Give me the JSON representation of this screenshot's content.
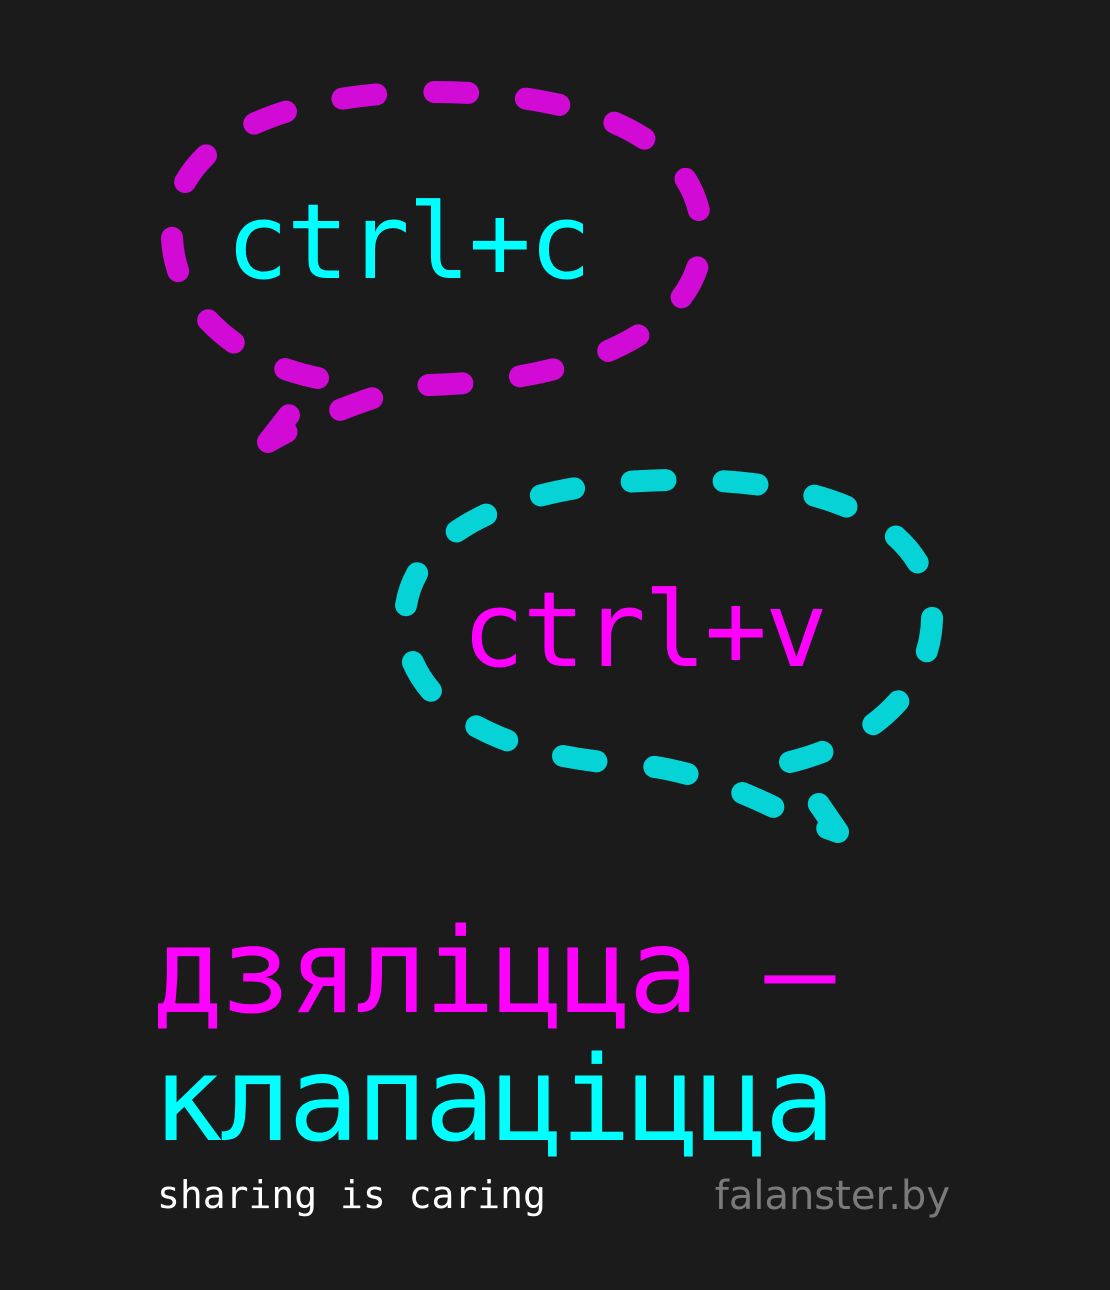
{
  "bubbles": {
    "copy": {
      "label": "ctrl+c",
      "outline_color": "#d10ad6",
      "text_color": "#00ffff"
    },
    "paste": {
      "label": "ctrl+v",
      "outline_color": "#06d3d6",
      "text_color": "#ff00ff"
    }
  },
  "headline": {
    "line1": "дзяліцца –",
    "line2": "клапаціцца",
    "line1_color": "#ff00ff",
    "line2_color": "#00ffff"
  },
  "footer": {
    "tagline": "sharing is caring",
    "site": "falanster.by"
  },
  "colors": {
    "background": "#1b1b1b",
    "tagline": "#ffffff",
    "site": "#7a7a7a"
  }
}
